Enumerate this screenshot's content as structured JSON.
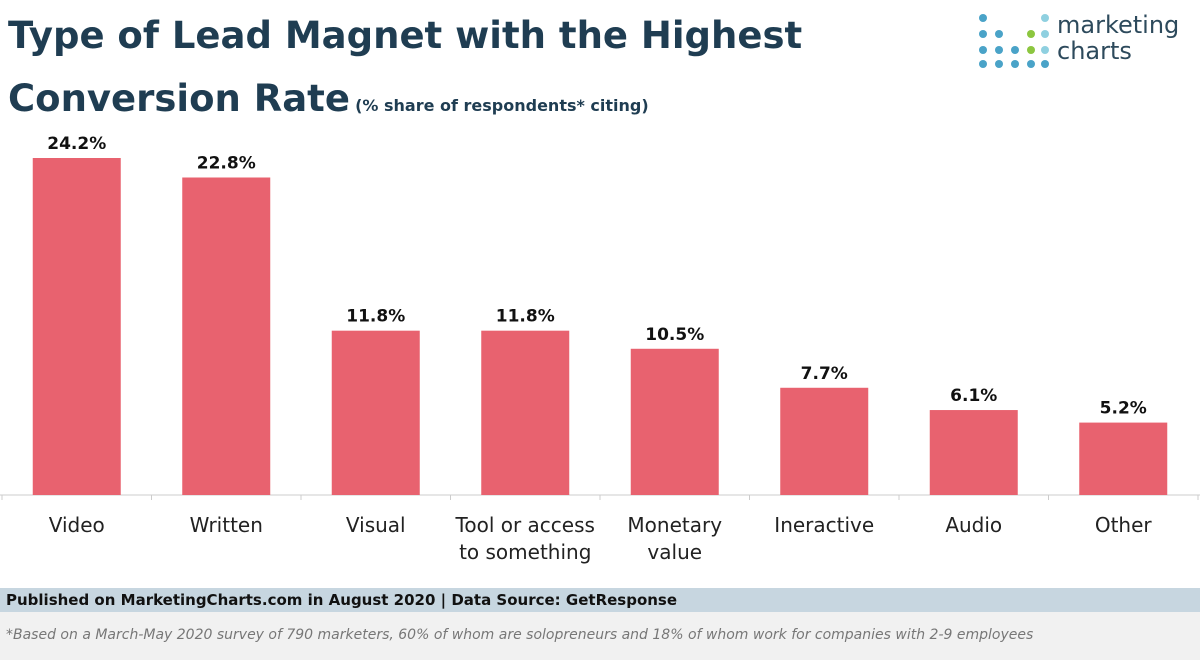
{
  "chart_data": {
    "type": "bar",
    "title": "Type of Lead Magnet with the Highest Conversion Rate",
    "subtitle": "(% share of respondents* citing)",
    "categories": [
      "Video",
      "Written",
      "Visual",
      "Tool or access to something",
      "Monetary value",
      "Ineractive",
      "Audio",
      "Other"
    ],
    "values": [
      24.2,
      22.8,
      11.8,
      11.8,
      10.5,
      7.7,
      6.1,
      5.2
    ],
    "value_labels": [
      "24.2%",
      "22.8%",
      "11.8%",
      "11.8%",
      "10.5%",
      "7.7%",
      "6.1%",
      "5.2%"
    ],
    "color": "#e8626f"
  },
  "logo": {
    "lines": [
      "marketing",
      "charts"
    ]
  },
  "footer": {
    "published": "Published on MarketingCharts.com in August 2020 | Data Source: GetResponse",
    "note": "*Based on a March-May 2020 survey of 790 marketers, 60% of whom are solopreneurs and 18% of whom work for companies with 2-9 employees"
  }
}
